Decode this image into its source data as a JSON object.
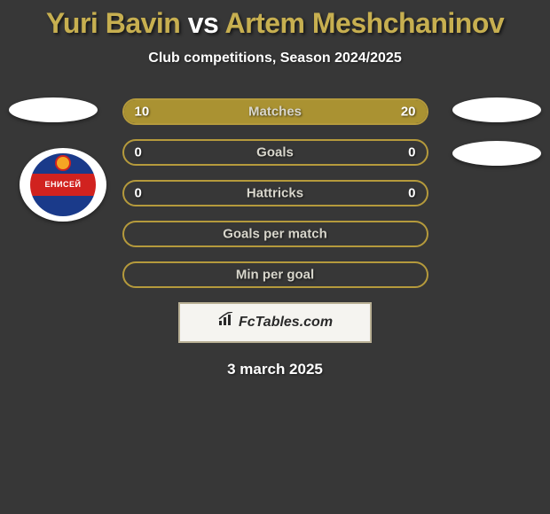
{
  "title": {
    "player1": "Yuri Bavin",
    "vs": "vs",
    "player2": "Artem Meshchaninov",
    "player1_color": "#c7af50",
    "vs_color": "#ffffff",
    "player2_color": "#c7af50"
  },
  "subtitle": "Club competitions, Season 2024/2025",
  "club_logo": {
    "top_color": "#1a3a8a",
    "mid_color": "#d1221f",
    "bot_color": "#1a3a8a",
    "text": "ЕНИСЕЙ"
  },
  "bars": {
    "border_color": "#b59a3c",
    "fill_color": "#aa9232",
    "label_color": "#d8d6cc",
    "value_color": "#ffffff",
    "rows": [
      {
        "label": "Matches",
        "left_val": "10",
        "right_val": "20",
        "left_pct": 33,
        "right_pct": 67
      },
      {
        "label": "Goals",
        "left_val": "0",
        "right_val": "0",
        "left_pct": 0,
        "right_pct": 0
      },
      {
        "label": "Hattricks",
        "left_val": "0",
        "right_val": "0",
        "left_pct": 0,
        "right_pct": 0
      },
      {
        "label": "Goals per match",
        "left_val": "",
        "right_val": "",
        "left_pct": 0,
        "right_pct": 0
      },
      {
        "label": "Min per goal",
        "left_val": "",
        "right_val": "",
        "left_pct": 0,
        "right_pct": 0
      }
    ]
  },
  "footer": {
    "brand": "FcTables.com",
    "bg": "#f5f4f0",
    "border": "#b9b095"
  },
  "date": "3 march 2025",
  "colors": {
    "page_bg": "#373737"
  }
}
